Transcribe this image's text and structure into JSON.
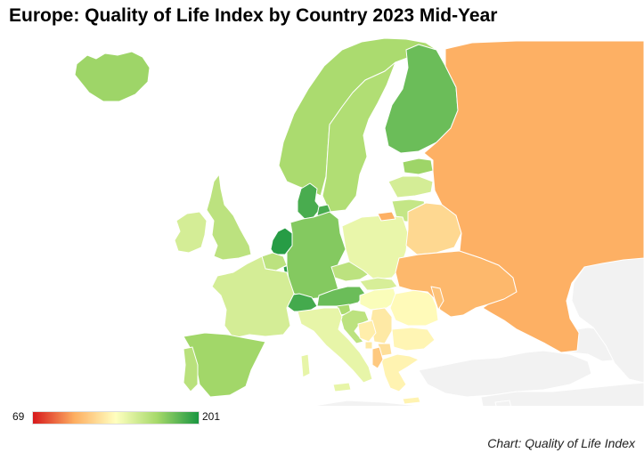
{
  "title": "Europe: Quality of Life Index by Country 2023 Mid-Year",
  "legend": {
    "min_label": "69",
    "max_label": "201",
    "min": 69,
    "max": 201,
    "gradient_colors": [
      "#d7191c",
      "#fdae61",
      "#ffffbf",
      "#a6d96a",
      "#1a9641"
    ]
  },
  "credit": "Chart: Quality of Life Index",
  "colors": {
    "no_data": "#f2f2f2",
    "border": "#ffffff",
    "water": "#ffffff"
  },
  "map_data": {
    "type": "choropleth",
    "scale": [
      69,
      201
    ],
    "countries": [
      {
        "name": "Iceland",
        "value": 170
      },
      {
        "name": "Norway",
        "value": 166
      },
      {
        "name": "Sweden",
        "value": 164
      },
      {
        "name": "Finland",
        "value": 182
      },
      {
        "name": "Denmark",
        "value": 190
      },
      {
        "name": "Netherlands",
        "value": 198
      },
      {
        "name": "Luxembourg",
        "value": 196
      },
      {
        "name": "Germany",
        "value": 176
      },
      {
        "name": "Austria",
        "value": 182
      },
      {
        "name": "Switzerland",
        "value": 191
      },
      {
        "name": "Estonia",
        "value": 170
      },
      {
        "name": "Latvia",
        "value": 151
      },
      {
        "name": "Lithuania",
        "value": 157
      },
      {
        "name": "United Kingdom",
        "value": 160
      },
      {
        "name": "Ireland",
        "value": 151
      },
      {
        "name": "Belgium",
        "value": 160
      },
      {
        "name": "France",
        "value": 151
      },
      {
        "name": "Spain",
        "value": 169
      },
      {
        "name": "Portugal",
        "value": 161
      },
      {
        "name": "Czechia",
        "value": 160
      },
      {
        "name": "Slovenia",
        "value": 166
      },
      {
        "name": "Croatia",
        "value": 160
      },
      {
        "name": "Poland",
        "value": 143
      },
      {
        "name": "Slovakia",
        "value": 150
      },
      {
        "name": "Hungary",
        "value": 137
      },
      {
        "name": "Italy",
        "value": 144
      },
      {
        "name": "Romania",
        "value": 133
      },
      {
        "name": "Bulgaria",
        "value": 131
      },
      {
        "name": "Greece",
        "value": 130
      },
      {
        "name": "Serbia",
        "value": 126
      },
      {
        "name": "Bosnia and Herzegovina",
        "value": 128
      },
      {
        "name": "Montenegro",
        "value": 126
      },
      {
        "name": "North Macedonia",
        "value": 122
      },
      {
        "name": "Albania",
        "value": 113
      },
      {
        "name": "Belarus",
        "value": 119
      },
      {
        "name": "Ukraine",
        "value": 106
      },
      {
        "name": "Moldova",
        "value": 110
      },
      {
        "name": "Russia",
        "value": 103
      },
      {
        "name": "Kaliningrad",
        "value": 103
      }
    ]
  }
}
